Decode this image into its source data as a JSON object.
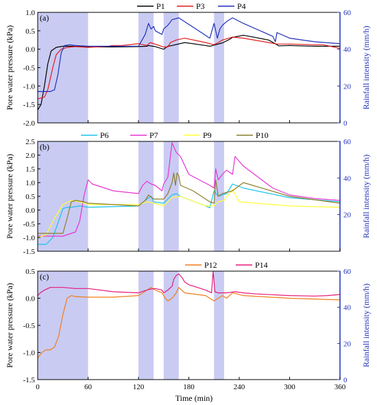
{
  "figure": {
    "xlabel": "Time (min)",
    "x_ticks": [
      0,
      60,
      120,
      180,
      240,
      300,
      360
    ],
    "xlim": [
      0,
      360
    ],
    "rain_band_color": "#c9cbf3",
    "rain_axis_color": "#1f2fb8"
  },
  "chart_data": [
    {
      "type": "line",
      "panel_label": "(a)",
      "ylabel": "Pore water pressure (kPa)",
      "y2label": "Rainfall intensity (mm/h)",
      "xlim": [
        0,
        360
      ],
      "ylim": [
        -2.0,
        1.0
      ],
      "y_ticks": [
        -2.0,
        -1.5,
        -1.0,
        -0.5,
        0.0,
        0.5,
        1.0
      ],
      "y_tick_labels": [
        "-2.0",
        "-1.5",
        "-1.0",
        "-0.5",
        "0.0",
        "0.5",
        "1.0"
      ],
      "y2lim": [
        0,
        60
      ],
      "y2_ticks": [
        0,
        20,
        40,
        60
      ],
      "legend_position": "top",
      "rain_periods": [
        [
          0,
          60
        ],
        [
          120,
          138
        ],
        [
          150,
          168
        ],
        [
          210,
          222
        ]
      ],
      "series": [
        {
          "name": "P1",
          "color": "#000000",
          "x": [
            0,
            4,
            8,
            12,
            16,
            22,
            30,
            45,
            60,
            90,
            120,
            130,
            132,
            140,
            150,
            155,
            160,
            175,
            200,
            205,
            220,
            228,
            232,
            245,
            275,
            285,
            287,
            300,
            330,
            340,
            360
          ],
          "y": [
            -1.65,
            -1.5,
            -1.0,
            -0.4,
            -0.05,
            0.05,
            0.08,
            0.08,
            0.06,
            0.06,
            0.07,
            0.08,
            0.1,
            0.07,
            0.0,
            0.08,
            0.1,
            0.18,
            0.1,
            0.08,
            0.17,
            0.26,
            0.32,
            0.38,
            0.25,
            0.12,
            0.09,
            0.1,
            0.08,
            0.08,
            0.08
          ]
        },
        {
          "name": "P3",
          "color": "#e41a1c",
          "x": [
            0,
            8,
            12,
            18,
            22,
            28,
            35,
            45,
            60,
            85,
            88,
            100,
            120,
            130,
            134,
            150,
            155,
            158,
            165,
            175,
            200,
            210,
            215,
            220,
            225,
            232,
            245,
            275,
            285,
            300,
            330,
            340,
            360
          ],
          "y": [
            -1.35,
            -1.3,
            -1.1,
            -0.5,
            -0.15,
            0.0,
            0.05,
            0.07,
            0.05,
            0.08,
            0.1,
            0.1,
            0.15,
            0.1,
            0.18,
            0.06,
            0.06,
            0.18,
            0.25,
            0.3,
            0.18,
            0.12,
            0.18,
            0.25,
            0.28,
            0.33,
            0.3,
            0.18,
            0.14,
            0.14,
            0.12,
            0.12,
            0.02
          ]
        },
        {
          "name": "P4",
          "color": "#1f2fb8",
          "x": [
            0,
            15,
            20,
            24,
            28,
            32,
            38,
            45,
            60,
            120,
            128,
            132,
            135,
            138,
            140,
            148,
            150,
            155,
            160,
            168,
            185,
            205,
            210,
            212,
            214,
            217,
            220,
            225,
            232,
            245,
            280,
            283,
            285,
            300,
            330,
            360
          ],
          "y": [
            -1.15,
            -1.15,
            -1.1,
            -0.7,
            -0.1,
            0.1,
            0.12,
            0.1,
            0.08,
            0.08,
            0.4,
            0.7,
            0.55,
            0.62,
            0.5,
            0.4,
            0.55,
            0.65,
            0.8,
            0.85,
            0.6,
            0.3,
            0.7,
            0.5,
            0.3,
            0.55,
            0.65,
            0.75,
            0.85,
            0.7,
            0.35,
            0.2,
            0.45,
            0.3,
            0.2,
            0.15
          ]
        }
      ]
    },
    {
      "type": "line",
      "panel_label": "(b)",
      "ylabel": "Pore water pressure (kPa)",
      "y2label": "Rainfall intensity (mm/h)",
      "xlim": [
        0,
        360
      ],
      "ylim": [
        -1.5,
        2.5
      ],
      "y_ticks": [
        -1.5,
        -1.0,
        -0.5,
        0.0,
        0.5,
        1.0,
        1.5,
        2.0,
        2.5
      ],
      "y_tick_labels": [
        "-1.5",
        "-1.0",
        "-0.5",
        "0.0",
        "0.5",
        "1.0",
        "1.5",
        "2.0",
        "2.5"
      ],
      "y2lim": [
        0,
        60
      ],
      "y2_ticks": [
        20,
        40,
        60
      ],
      "legend_position": "top",
      "rain_periods": [
        [
          0,
          60
        ],
        [
          120,
          138
        ],
        [
          150,
          168
        ],
        [
          210,
          222
        ]
      ],
      "series": [
        {
          "name": "P6",
          "color": "#19c3ea",
          "x": [
            0,
            10,
            18,
            25,
            30,
            35,
            40,
            50,
            60,
            120,
            130,
            135,
            138,
            150,
            160,
            165,
            170,
            200,
            205,
            210,
            215,
            225,
            232,
            245,
            300,
            360
          ],
          "y": [
            -1.25,
            -1.25,
            -1.0,
            -0.4,
            0.05,
            0.1,
            0.1,
            0.15,
            0.1,
            0.15,
            0.4,
            0.5,
            0.3,
            0.25,
            0.55,
            0.6,
            0.5,
            0.15,
            0.08,
            0.7,
            0.5,
            0.6,
            0.95,
            0.8,
            0.45,
            0.3
          ]
        },
        {
          "name": "P7",
          "color": "#e632d2",
          "x": [
            0,
            30,
            45,
            50,
            55,
            60,
            65,
            90,
            120,
            125,
            130,
            135,
            140,
            148,
            150,
            155,
            160,
            165,
            170,
            180,
            205,
            210,
            212,
            215,
            220,
            225,
            232,
            235,
            245,
            280,
            300,
            330,
            360
          ],
          "y": [
            -0.95,
            -0.95,
            -0.8,
            -0.4,
            0.5,
            1.1,
            0.95,
            0.7,
            0.6,
            0.9,
            1.05,
            0.95,
            0.9,
            0.7,
            0.95,
            1.2,
            2.45,
            2.1,
            1.95,
            1.3,
            0.9,
            0.8,
            1.5,
            1.1,
            1.3,
            1.45,
            1.3,
            1.95,
            1.6,
            0.8,
            0.55,
            0.42,
            0.35
          ]
        },
        {
          "name": "P9",
          "color": "#ffff33",
          "x": [
            0,
            10,
            20,
            30,
            40,
            50,
            60,
            120,
            130,
            138,
            150,
            160,
            170,
            200,
            210,
            215,
            222,
            232,
            240,
            300,
            360
          ],
          "y": [
            -1.0,
            -0.9,
            -0.3,
            0.2,
            0.35,
            0.3,
            0.2,
            0.2,
            0.3,
            0.25,
            0.15,
            0.45,
            0.5,
            0.15,
            0.15,
            0.3,
            0.35,
            0.75,
            0.3,
            0.15,
            0.1
          ]
        },
        {
          "name": "P10",
          "color": "#8b7d2a",
          "x": [
            0,
            30,
            35,
            40,
            45,
            55,
            60,
            120,
            128,
            132,
            138,
            150,
            155,
            160,
            162,
            164,
            166,
            168,
            170,
            185,
            205,
            210,
            212,
            215,
            220,
            232,
            245,
            300,
            360
          ],
          "y": [
            -0.85,
            -0.85,
            -0.3,
            0.3,
            0.35,
            0.3,
            0.25,
            0.15,
            0.35,
            0.55,
            0.4,
            0.4,
            0.6,
            1.0,
            1.35,
            0.9,
            1.35,
            1.25,
            0.9,
            0.7,
            0.3,
            0.25,
            1.1,
            0.5,
            0.6,
            0.7,
            1.0,
            0.5,
            0.25
          ]
        }
      ]
    },
    {
      "type": "line",
      "panel_label": "(c)",
      "ylabel": "Pore water pressure (kPa)",
      "y2label": "Rainfall intensity (mm/h)",
      "xlim": [
        0,
        360
      ],
      "ylim": [
        -1.5,
        0.5
      ],
      "y_ticks": [
        -1.5,
        -1.0,
        -0.5,
        0.0,
        0.5
      ],
      "y_tick_labels": [
        "-1.5",
        "-1.0",
        "-0.5",
        "0.0",
        "0.5"
      ],
      "y2lim": [
        0,
        60
      ],
      "y2_ticks": [
        0,
        20,
        40,
        60
      ],
      "legend_position": "top",
      "rain_periods": [
        [
          0,
          60
        ],
        [
          120,
          138
        ],
        [
          150,
          168
        ],
        [
          210,
          222
        ]
      ],
      "series": [
        {
          "name": "P12",
          "color": "#f07d1a",
          "x": [
            0,
            5,
            10,
            15,
            20,
            25,
            30,
            35,
            40,
            45,
            60,
            90,
            120,
            130,
            135,
            140,
            148,
            152,
            155,
            160,
            165,
            168,
            175,
            200,
            205,
            210,
            215,
            220,
            225,
            232,
            245,
            300,
            360
          ],
          "y": [
            -1.1,
            -1.0,
            -0.95,
            -0.95,
            -0.9,
            -0.7,
            -0.3,
            0.0,
            0.05,
            0.03,
            0.02,
            0.02,
            0.05,
            0.15,
            0.2,
            0.15,
            0.1,
            0.0,
            -0.05,
            0.0,
            0.1,
            0.2,
            0.1,
            0.05,
            0.0,
            -0.05,
            0.0,
            0.05,
            0.0,
            0.1,
            0.05,
            0.0,
            -0.03
          ]
        },
        {
          "name": "P14",
          "color": "#e6187a",
          "x": [
            0,
            3,
            8,
            15,
            30,
            45,
            60,
            90,
            120,
            130,
            135,
            140,
            148,
            150,
            155,
            160,
            162,
            165,
            168,
            172,
            175,
            180,
            200,
            207,
            209,
            211,
            215,
            225,
            235,
            245,
            260,
            300,
            330,
            345,
            360
          ],
          "y": [
            0.05,
            0.1,
            0.15,
            0.2,
            0.2,
            0.18,
            0.18,
            0.12,
            0.1,
            0.15,
            0.17,
            0.18,
            0.15,
            0.1,
            0.15,
            0.22,
            0.35,
            0.42,
            0.45,
            0.38,
            0.3,
            0.25,
            0.15,
            0.1,
            0.5,
            0.12,
            0.1,
            0.1,
            0.12,
            0.1,
            0.08,
            0.05,
            0.04,
            0.05,
            0.07
          ]
        }
      ]
    }
  ]
}
